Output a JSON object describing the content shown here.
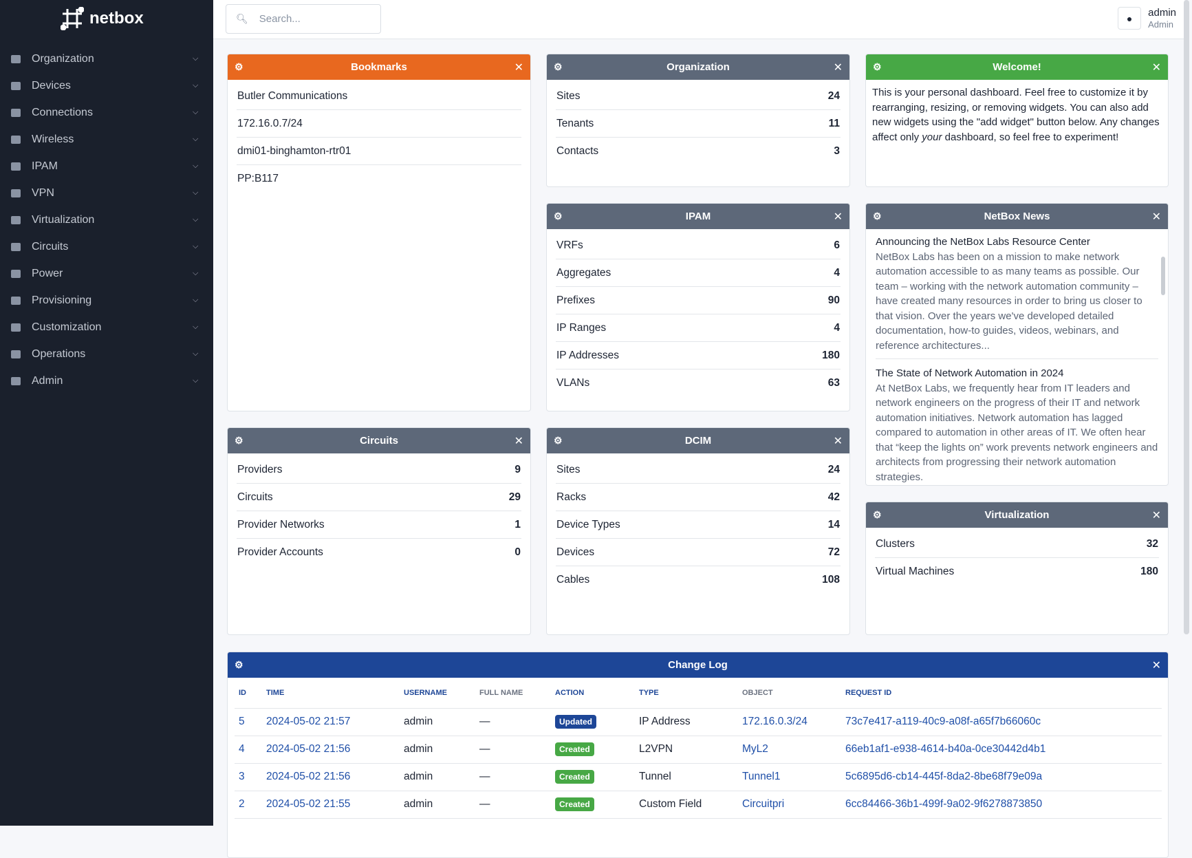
{
  "app": {
    "name": "netbox"
  },
  "sidebar": {
    "items": [
      {
        "label": "Organization",
        "icon": "building-icon"
      },
      {
        "label": "Devices",
        "icon": "server-icon"
      },
      {
        "label": "Connections",
        "icon": "plug-icon"
      },
      {
        "label": "Wireless",
        "icon": "wifi-icon"
      },
      {
        "label": "IPAM",
        "icon": "counter-icon"
      },
      {
        "label": "VPN",
        "icon": "tree-icon"
      },
      {
        "label": "Virtualization",
        "icon": "monitor-icon"
      },
      {
        "label": "Circuits",
        "icon": "transit-icon"
      },
      {
        "label": "Power",
        "icon": "flash-icon"
      },
      {
        "label": "Provisioning",
        "icon": "file-icon"
      },
      {
        "label": "Customization",
        "icon": "toolbox-icon"
      },
      {
        "label": "Operations",
        "icon": "cogs-icon"
      },
      {
        "label": "Admin",
        "icon": "users-icon"
      }
    ]
  },
  "header": {
    "search_placeholder": "Search...",
    "user": "admin",
    "role": "Admin"
  },
  "colors": {
    "orange": "#e8681f",
    "gray": "#5d6879",
    "green": "#47a845",
    "blue": "#1d4697"
  },
  "bookmarks": {
    "title": "Bookmarks",
    "items": [
      "Butler Communications",
      "172.16.0.7/24",
      "dmi01-binghamton-rtr01",
      "PP:B117"
    ]
  },
  "organization": {
    "title": "Organization",
    "rows": [
      {
        "label": "Sites",
        "value": "24"
      },
      {
        "label": "Tenants",
        "value": "11"
      },
      {
        "label": "Contacts",
        "value": "3"
      }
    ]
  },
  "welcome": {
    "title": "Welcome!",
    "text1": "This is your personal dashboard. Feel free to customize it by rearranging, resizing, or removing widgets. You can also add new widgets using the \"add widget\" button below. Any changes affect only ",
    "em": "your",
    "text2": " dashboard, so feel free to experiment!"
  },
  "ipam": {
    "title": "IPAM",
    "rows": [
      {
        "label": "VRFs",
        "value": "6"
      },
      {
        "label": "Aggregates",
        "value": "4"
      },
      {
        "label": "Prefixes",
        "value": "90"
      },
      {
        "label": "IP Ranges",
        "value": "4"
      },
      {
        "label": "IP Addresses",
        "value": "180"
      },
      {
        "label": "VLANs",
        "value": "63"
      }
    ]
  },
  "news": {
    "title": "NetBox News",
    "articles": [
      {
        "title": "Announcing the NetBox Labs Resource Center",
        "body": "NetBox Labs has been on a mission to make network automation accessible to as many teams as possible. Our team – working with the network automation community – have created many resources in order to bring us closer to that vision. Over the years we've developed detailed documentation, how-to guides, videos, webinars, and reference architectures..."
      },
      {
        "title": "The State of Network Automation in 2024",
        "body": "At NetBox Labs, we frequently hear from IT leaders and network engineers on the progress of their IT and network automation initiatives. Network automation has lagged compared to automation in other areas of IT. We often hear that “keep the lights on” work prevents network engineers and architects from progressing their network automation strategies."
      }
    ]
  },
  "circuits": {
    "title": "Circuits",
    "rows": [
      {
        "label": "Providers",
        "value": "9"
      },
      {
        "label": "Circuits",
        "value": "29"
      },
      {
        "label": "Provider Networks",
        "value": "1"
      },
      {
        "label": "Provider Accounts",
        "value": "0"
      }
    ]
  },
  "dcim": {
    "title": "DCIM",
    "rows": [
      {
        "label": "Sites",
        "value": "24"
      },
      {
        "label": "Racks",
        "value": "42"
      },
      {
        "label": "Device Types",
        "value": "14"
      },
      {
        "label": "Devices",
        "value": "72"
      },
      {
        "label": "Cables",
        "value": "108"
      }
    ]
  },
  "virtualization": {
    "title": "Virtualization",
    "rows": [
      {
        "label": "Clusters",
        "value": "32"
      },
      {
        "label": "Virtual Machines",
        "value": "180"
      }
    ]
  },
  "changelog": {
    "title": "Change Log",
    "columns": [
      "ID",
      "TIME",
      "USERNAME",
      "FULL NAME",
      "ACTION",
      "TYPE",
      "OBJECT",
      "REQUEST ID"
    ],
    "rows": [
      {
        "id": "5",
        "time": "2024-05-02 21:57",
        "user": "admin",
        "full": "—",
        "action": "Updated",
        "type": "IP Address",
        "object": "172.16.0.3/24",
        "req": "73c7e417-a119-40c9-a08f-a65f7b66060c"
      },
      {
        "id": "4",
        "time": "2024-05-02 21:56",
        "user": "admin",
        "full": "—",
        "action": "Created",
        "type": "L2VPN",
        "object": "MyL2",
        "req": "66eb1af1-e938-4614-b40a-0ce30442d4b1"
      },
      {
        "id": "3",
        "time": "2024-05-02 21:56",
        "user": "admin",
        "full": "—",
        "action": "Created",
        "type": "Tunnel",
        "object": "Tunnel1",
        "req": "5c6895d6-cb14-445f-8da2-8be68f79e09a"
      },
      {
        "id": "2",
        "time": "2024-05-02 21:55",
        "user": "admin",
        "full": "—",
        "action": "Created",
        "type": "Custom Field",
        "object": "Circuitpri",
        "req": "6cc84466-36b1-499f-9a02-9f6278873850"
      }
    ]
  }
}
